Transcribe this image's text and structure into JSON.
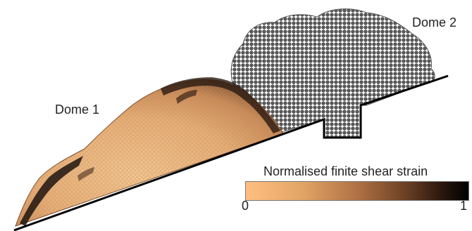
{
  "labels": {
    "dome1": "Dome 1",
    "dome2": "Dome 2"
  },
  "colorbar": {
    "title": "Normalised finite shear strain",
    "min": "0",
    "max": "1",
    "colors": [
      "#ffbf80",
      "#e3a566",
      "#b07244",
      "#6b3f25",
      "#2a170e",
      "#000000"
    ]
  },
  "colors": {
    "dome2_particles": "#6f6f6f",
    "dome1_base": "#e8b27a",
    "slope_line": "#000000"
  }
}
